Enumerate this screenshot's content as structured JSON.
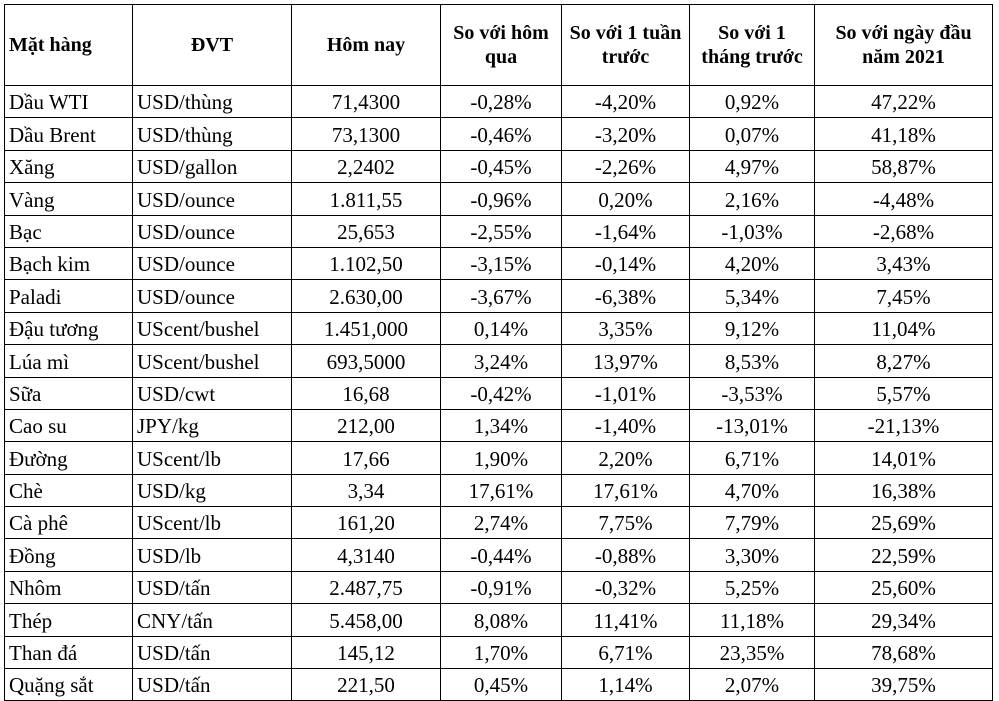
{
  "headers": {
    "item": "Mặt hàng",
    "unit": "ĐVT",
    "today": "Hôm nay",
    "vs_yesterday": "So với hôm qua",
    "vs_week": "So với 1 tuần trước",
    "vs_month": "So với 1 tháng trước",
    "vs_year_start": "So với ngày đầu năm 2021"
  },
  "rows": [
    {
      "item": "Dầu WTI",
      "unit": "USD/thùng",
      "today": "71,4300",
      "d1": "-0,28%",
      "w1": "-4,20%",
      "m1": "0,92%",
      "ytd": "47,22%"
    },
    {
      "item": "Dầu Brent",
      "unit": "USD/thùng",
      "today": "73,1300",
      "d1": "-0,46%",
      "w1": "-3,20%",
      "m1": "0,07%",
      "ytd": "41,18%"
    },
    {
      "item": "Xăng",
      "unit": "USD/gallon",
      "today": "2,2402",
      "d1": "-0,45%",
      "w1": "-2,26%",
      "m1": "4,97%",
      "ytd": "58,87%"
    },
    {
      "item": "Vàng",
      "unit": "USD/ounce",
      "today": "1.811,55",
      "d1": "-0,96%",
      "w1": "0,20%",
      "m1": "2,16%",
      "ytd": "-4,48%"
    },
    {
      "item": "Bạc",
      "unit": "USD/ounce",
      "today": "25,653",
      "d1": "-2,55%",
      "w1": "-1,64%",
      "m1": "-1,03%",
      "ytd": "-2,68%"
    },
    {
      "item": "Bạch kim",
      "unit": "USD/ounce",
      "today": "1.102,50",
      "d1": "-3,15%",
      "w1": "-0,14%",
      "m1": "4,20%",
      "ytd": "3,43%"
    },
    {
      "item": "Paladi",
      "unit": "USD/ounce",
      "today": "2.630,00",
      "d1": "-3,67%",
      "w1": "-6,38%",
      "m1": "5,34%",
      "ytd": "7,45%"
    },
    {
      "item": "Đậu tương",
      "unit": "UScent/bushel",
      "today": "1.451,000",
      "d1": "0,14%",
      "w1": "3,35%",
      "m1": "9,12%",
      "ytd": "11,04%"
    },
    {
      "item": "Lúa mì",
      "unit": "UScent/bushel",
      "today": "693,5000",
      "d1": "3,24%",
      "w1": "13,97%",
      "m1": "8,53%",
      "ytd": "8,27%"
    },
    {
      "item": "Sữa",
      "unit": "USD/cwt",
      "today": "16,68",
      "d1": "-0,42%",
      "w1": "-1,01%",
      "m1": "-3,53%",
      "ytd": "5,57%"
    },
    {
      "item": "Cao su",
      "unit": "JPY/kg",
      "today": "212,00",
      "d1": "1,34%",
      "w1": "-1,40%",
      "m1": "-13,01%",
      "ytd": "-21,13%"
    },
    {
      "item": "Đường",
      "unit": "UScent/lb",
      "today": "17,66",
      "d1": "1,90%",
      "w1": "2,20%",
      "m1": "6,71%",
      "ytd": "14,01%"
    },
    {
      "item": "Chè",
      "unit": "USD/kg",
      "today": "3,34",
      "d1": "17,61%",
      "w1": "17,61%",
      "m1": "4,70%",
      "ytd": "16,38%"
    },
    {
      "item": "Cà phê",
      "unit": "UScent/lb",
      "today": "161,20",
      "d1": "2,74%",
      "w1": "7,75%",
      "m1": "7,79%",
      "ytd": "25,69%"
    },
    {
      "item": "Đồng",
      "unit": "USD/lb",
      "today": "4,3140",
      "d1": "-0,44%",
      "w1": "-0,88%",
      "m1": "3,30%",
      "ytd": "22,59%"
    },
    {
      "item": "Nhôm",
      "unit": "USD/tấn",
      "today": "2.487,75",
      "d1": "-0,91%",
      "w1": "-0,32%",
      "m1": "5,25%",
      "ytd": "25,60%"
    },
    {
      "item": "Thép",
      "unit": "CNY/tấn",
      "today": "5.458,00",
      "d1": "8,08%",
      "w1": "11,41%",
      "m1": "11,18%",
      "ytd": "29,34%"
    },
    {
      "item": "Than đá",
      "unit": "USD/tấn",
      "today": "145,12",
      "d1": "1,70%",
      "w1": "6,71%",
      "m1": "23,35%",
      "ytd": "78,68%"
    },
    {
      "item": "Quặng sắt",
      "unit": "USD/tấn",
      "today": "221,50",
      "d1": "0,45%",
      "w1": "1,14%",
      "m1": "2,07%",
      "ytd": "39,75%"
    }
  ]
}
